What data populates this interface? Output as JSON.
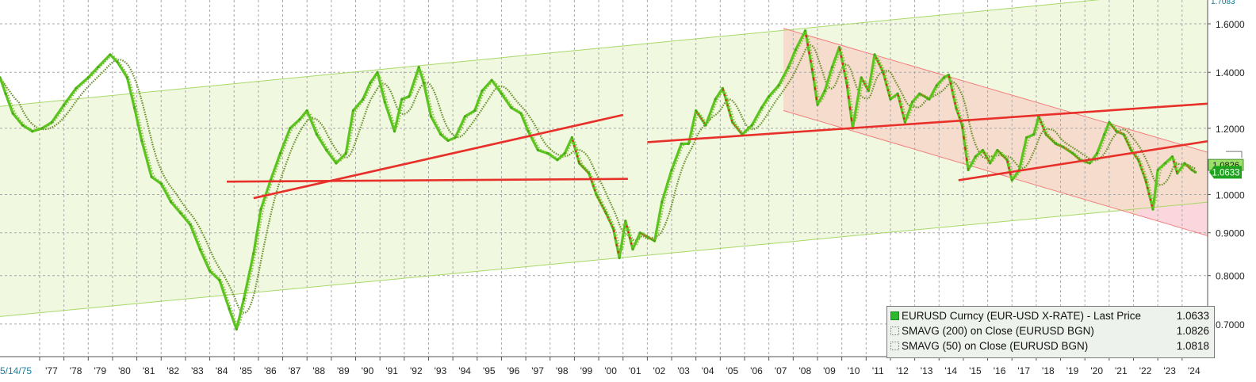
{
  "chart_data": {
    "type": "line",
    "start_date_label": "5/14/75",
    "x_tick_labels": [
      "'77",
      "'78",
      "'79",
      "'80",
      "'81",
      "'82",
      "'83",
      "'84",
      "'85",
      "'86",
      "'87",
      "'88",
      "'89",
      "'90",
      "'91",
      "'92",
      "'93",
      "'94",
      "'95",
      "'96",
      "'97",
      "'98",
      "'99",
      "'00",
      "'01",
      "'02",
      "'03",
      "'04",
      "'05",
      "'06",
      "'07",
      "'08",
      "'09",
      "'10",
      "'11",
      "'12",
      "'13",
      "'14",
      "'15",
      "'16",
      "'17",
      "'18",
      "'19",
      "'20",
      "'21",
      "'22",
      "'23",
      "'24"
    ],
    "y_tick_labels": [
      "1.6000",
      "1.4000",
      "1.2000",
      "1.0000",
      "0.9000",
      "0.8000",
      "0.7000"
    ],
    "y_scale": "log",
    "ylim": [
      0.64,
      1.7083
    ],
    "y_axis_top_label": "1.7083",
    "last_price_badge": "1.0633",
    "ma_badge": "1.0826",
    "grid": true,
    "legend_position": "bottom-right",
    "series": [
      {
        "name": "EURUSD Curncy (EUR-USD X-RATE) - Last Price",
        "last_value": "1.0633",
        "color": "#5cc41f",
        "points": [
          [
            1975.37,
            1.38
          ],
          [
            1975.6,
            1.32
          ],
          [
            1975.9,
            1.25
          ],
          [
            1976.3,
            1.21
          ],
          [
            1976.7,
            1.19
          ],
          [
            1977.1,
            1.2
          ],
          [
            1977.5,
            1.22
          ],
          [
            1978.0,
            1.28
          ],
          [
            1978.5,
            1.34
          ],
          [
            1979.0,
            1.38
          ],
          [
            1979.4,
            1.42
          ],
          [
            1979.9,
            1.47
          ],
          [
            1980.2,
            1.44
          ],
          [
            1980.6,
            1.38
          ],
          [
            1980.9,
            1.27
          ],
          [
            1981.2,
            1.16
          ],
          [
            1981.6,
            1.05
          ],
          [
            1982.0,
            1.03
          ],
          [
            1982.4,
            0.98
          ],
          [
            1982.8,
            0.95
          ],
          [
            1983.2,
            0.92
          ],
          [
            1983.6,
            0.86
          ],
          [
            1984.0,
            0.81
          ],
          [
            1984.4,
            0.79
          ],
          [
            1984.8,
            0.73
          ],
          [
            1985.1,
            0.69
          ],
          [
            1985.4,
            0.75
          ],
          [
            1985.8,
            0.85
          ],
          [
            1986.1,
            0.96
          ],
          [
            1986.5,
            1.04
          ],
          [
            1986.9,
            1.12
          ],
          [
            1987.3,
            1.2
          ],
          [
            1987.7,
            1.23
          ],
          [
            1988.0,
            1.26
          ],
          [
            1988.4,
            1.18
          ],
          [
            1988.8,
            1.13
          ],
          [
            1989.2,
            1.09
          ],
          [
            1989.6,
            1.12
          ],
          [
            1989.9,
            1.26
          ],
          [
            1990.3,
            1.3
          ],
          [
            1990.6,
            1.36
          ],
          [
            1990.9,
            1.4
          ],
          [
            1991.2,
            1.29
          ],
          [
            1991.6,
            1.19
          ],
          [
            1991.9,
            1.3
          ],
          [
            1992.2,
            1.31
          ],
          [
            1992.6,
            1.42
          ],
          [
            1992.8,
            1.36
          ],
          [
            1993.1,
            1.24
          ],
          [
            1993.5,
            1.18
          ],
          [
            1993.8,
            1.16
          ],
          [
            1994.1,
            1.17
          ],
          [
            1994.5,
            1.24
          ],
          [
            1994.9,
            1.26
          ],
          [
            1995.2,
            1.33
          ],
          [
            1995.6,
            1.37
          ],
          [
            1996.0,
            1.32
          ],
          [
            1996.4,
            1.27
          ],
          [
            1996.8,
            1.25
          ],
          [
            1997.1,
            1.19
          ],
          [
            1997.5,
            1.13
          ],
          [
            1997.9,
            1.12
          ],
          [
            1998.3,
            1.1
          ],
          [
            1998.6,
            1.12
          ],
          [
            1998.9,
            1.17
          ],
          [
            1999.2,
            1.09
          ],
          [
            1999.6,
            1.06
          ],
          [
            1999.9,
            1.0
          ],
          [
            2000.3,
            0.95
          ],
          [
            2000.6,
            0.91
          ],
          [
            2000.85,
            0.84
          ],
          [
            2001.1,
            0.93
          ],
          [
            2001.4,
            0.86
          ],
          [
            2001.7,
            0.9
          ],
          [
            2002.0,
            0.89
          ],
          [
            2002.3,
            0.88
          ],
          [
            2002.6,
            0.98
          ],
          [
            2003.0,
            1.07
          ],
          [
            2003.4,
            1.15
          ],
          [
            2003.7,
            1.15
          ],
          [
            2004.0,
            1.26
          ],
          [
            2004.4,
            1.21
          ],
          [
            2004.8,
            1.3
          ],
          [
            2005.1,
            1.34
          ],
          [
            2005.5,
            1.22
          ],
          [
            2005.9,
            1.18
          ],
          [
            2006.3,
            1.21
          ],
          [
            2006.7,
            1.27
          ],
          [
            2007.0,
            1.31
          ],
          [
            2007.4,
            1.35
          ],
          [
            2007.8,
            1.42
          ],
          [
            2008.1,
            1.49
          ],
          [
            2008.5,
            1.57
          ],
          [
            2008.8,
            1.4
          ],
          [
            2009.0,
            1.28
          ],
          [
            2009.3,
            1.33
          ],
          [
            2009.6,
            1.42
          ],
          [
            2009.9,
            1.5
          ],
          [
            2010.2,
            1.36
          ],
          [
            2010.45,
            1.2
          ],
          [
            2010.8,
            1.38
          ],
          [
            2011.1,
            1.33
          ],
          [
            2011.35,
            1.47
          ],
          [
            2011.7,
            1.4
          ],
          [
            2012.0,
            1.3
          ],
          [
            2012.3,
            1.32
          ],
          [
            2012.6,
            1.22
          ],
          [
            2012.9,
            1.29
          ],
          [
            2013.2,
            1.32
          ],
          [
            2013.6,
            1.3
          ],
          [
            2013.9,
            1.35
          ],
          [
            2014.2,
            1.38
          ],
          [
            2014.4,
            1.39
          ],
          [
            2014.7,
            1.27
          ],
          [
            2014.95,
            1.21
          ],
          [
            2015.2,
            1.07
          ],
          [
            2015.5,
            1.11
          ],
          [
            2015.8,
            1.13
          ],
          [
            2016.1,
            1.09
          ],
          [
            2016.4,
            1.13
          ],
          [
            2016.8,
            1.1
          ],
          [
            2017.0,
            1.04
          ],
          [
            2017.3,
            1.07
          ],
          [
            2017.6,
            1.17
          ],
          [
            2017.9,
            1.18
          ],
          [
            2018.1,
            1.24
          ],
          [
            2018.4,
            1.18
          ],
          [
            2018.8,
            1.15
          ],
          [
            2019.1,
            1.14
          ],
          [
            2019.5,
            1.12
          ],
          [
            2019.8,
            1.1
          ],
          [
            2020.2,
            1.09
          ],
          [
            2020.5,
            1.12
          ],
          [
            2020.8,
            1.18
          ],
          [
            2021.0,
            1.22
          ],
          [
            2021.3,
            1.19
          ],
          [
            2021.6,
            1.18
          ],
          [
            2021.9,
            1.13
          ],
          [
            2022.2,
            1.1
          ],
          [
            2022.5,
            1.04
          ],
          [
            2022.8,
            0.96
          ],
          [
            2023.0,
            1.07
          ],
          [
            2023.3,
            1.09
          ],
          [
            2023.6,
            1.11
          ],
          [
            2023.8,
            1.06
          ],
          [
            2024.1,
            1.09
          ],
          [
            2024.4,
            1.07
          ],
          [
            2024.55,
            1.0633
          ]
        ]
      },
      {
        "name": "SMAVG (200) on Close (EURUSD BGN)",
        "last_value": "1.0826",
        "color": "#6a8f2a"
      },
      {
        "name": "SMAVG (50) on Close (EURUSD BGN)",
        "last_value": "1.0818",
        "color": "#8fbf4a"
      }
    ],
    "trend_lines": [
      [
        [
          1979.0,
          1.305
        ],
        [
          2019.7,
          1.7
        ]
      ],
      [
        [
          1975.0,
          0.713
        ],
        [
          2025.2,
          0.98
        ]
      ],
      [
        [
          1984.7,
          1.036
        ],
        [
          2001.2,
          1.044
        ]
      ],
      [
        [
          1985.8,
          0.99
        ],
        [
          2001.0,
          1.245
        ]
      ],
      [
        [
          2002.0,
          1.155
        ],
        [
          2025.2,
          1.285
        ]
      ],
      [
        [
          2014.8,
          1.04
        ],
        [
          2025.2,
          1.16
        ]
      ]
    ],
    "channel_down": {
      "upper": [
        [
          2007.6,
          1.58
        ],
        [
          2025.2,
          1.12
        ]
      ],
      "lower": [
        [
          2007.6,
          1.26
        ],
        [
          2025.2,
          0.89
        ]
      ]
    },
    "legend": {
      "items": [
        {
          "label": "EURUSD Curncy (EUR-USD X-RATE) - Last Price",
          "value": "1.0633"
        },
        {
          "label": "SMAVG (200)  on Close (EURUSD BGN)",
          "value": "1.0826"
        },
        {
          "label": "SMAVG (50)  on Close (EURUSD BGN)",
          "value": "1.0818"
        }
      ]
    },
    "colors": {
      "up_channel_fill": "#f0f8df",
      "up_channel_line": "#a8d86a",
      "down_channel_fill": "#f6dccc",
      "down_channel_line": "#f28080",
      "below_channel_fill": "#fbd6dc",
      "trend_line": "#e8302a",
      "grid": "#a8a8a8",
      "price_down": "#e02020",
      "last_badge": "#1fa31f",
      "axis_text": "#222222"
    }
  }
}
